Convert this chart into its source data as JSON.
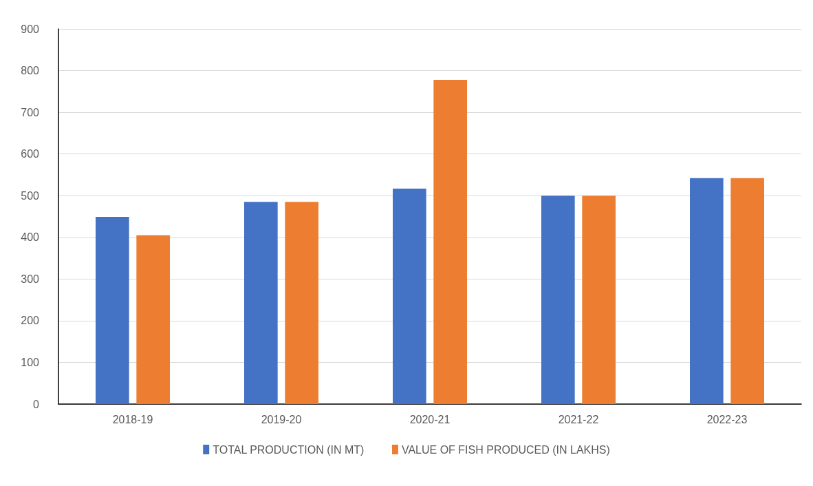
{
  "chart_data": {
    "type": "bar",
    "categories": [
      "2018-19",
      "2019-20",
      "2020-21",
      "2021-22",
      "2022-23"
    ],
    "series": [
      {
        "name": "TOTAL PRODUCTION (IN MT)",
        "color": "#4472c4",
        "values": [
          449,
          485,
          517,
          500,
          542
        ]
      },
      {
        "name": "VALUE OF FISH PRODUCED (IN LAKHS)",
        "color": "#ed7d31",
        "values": [
          405,
          485,
          778,
          500,
          542
        ]
      }
    ],
    "ylim": [
      0,
      900
    ],
    "yticks": [
      0,
      100,
      200,
      300,
      400,
      500,
      600,
      700,
      800,
      900
    ],
    "grid": "y",
    "legend": "bottom"
  }
}
